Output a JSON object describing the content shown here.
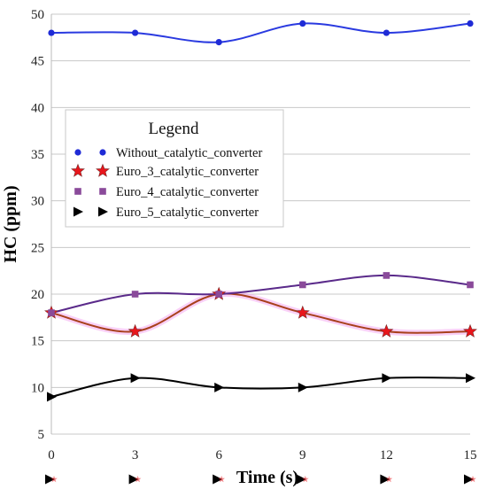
{
  "chart_data": {
    "type": "line",
    "xlabel": "Time (s)",
    "ylabel": "HC (ppm)",
    "x": [
      0,
      3,
      6,
      9,
      12,
      15
    ],
    "xlim": [
      0,
      15
    ],
    "ylim": [
      5,
      50
    ],
    "xticks": [
      "0",
      "3",
      "6",
      "9",
      "12",
      "15"
    ],
    "yticks": [
      "5",
      "10",
      "15",
      "20",
      "25",
      "30",
      "35",
      "40",
      "45",
      "50"
    ],
    "grid": "horizontal",
    "legend": {
      "title": "Legend",
      "placement": "upper-left",
      "entries": [
        "Without_catalytic_converter",
        "Euro_3_catalytic_converter",
        "Euro_4_catalytic_converter",
        "Euro_5_catalytic_converter"
      ]
    },
    "series": [
      {
        "name": "Without_catalytic_converter",
        "marker": "circle",
        "color": "#1f2bd6",
        "line_color": "#2a3ae0",
        "values": [
          48,
          48,
          47,
          49,
          48,
          49
        ]
      },
      {
        "name": "Euro_3_catalytic_converter",
        "marker": "star",
        "color": "#e8151b",
        "line_color": "#a8401c",
        "highlight_color": "#f4a9f0",
        "values": [
          18,
          16,
          20,
          18,
          16,
          16
        ]
      },
      {
        "name": "Euro_4_catalytic_converter",
        "marker": "square",
        "color": "#8a4a9a",
        "line_color": "#5a2a8a",
        "values": [
          18,
          20,
          20,
          21,
          22,
          21
        ]
      },
      {
        "name": "Euro_5_catalytic_converter",
        "marker": "triangle-right",
        "color": "#000000",
        "line_color": "#000000",
        "values": [
          9,
          11,
          10,
          10,
          11,
          11
        ]
      }
    ]
  }
}
